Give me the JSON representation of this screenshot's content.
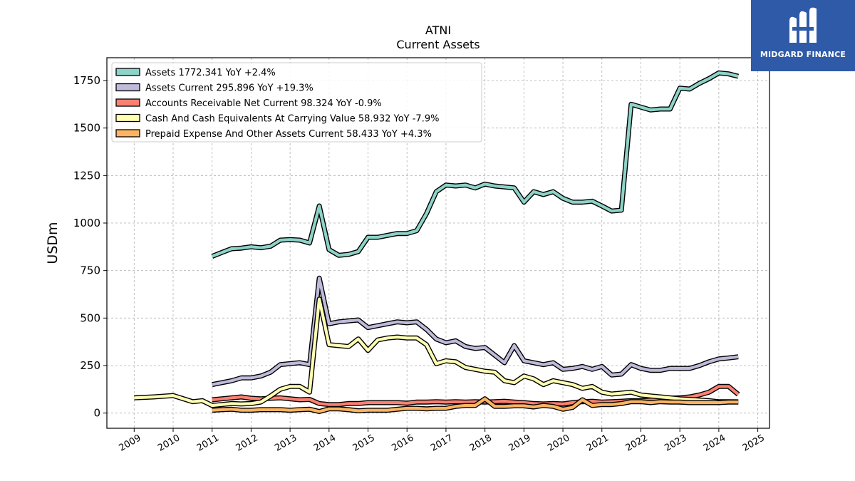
{
  "brand": {
    "name": "MIDGARD FINANCE",
    "color": "#2f5aa8"
  },
  "chart_data": {
    "type": "line",
    "title": "ATNI",
    "subtitle": "Current  Assets",
    "xlabel": "",
    "ylabel": "USDm",
    "xlim": [
      2008.3,
      2025.3
    ],
    "ylim": [
      -80,
      1870
    ],
    "yticks": [
      0,
      250,
      500,
      750,
      1000,
      1250,
      1500,
      1750
    ],
    "xticks": [
      "2009",
      "2010",
      "2011",
      "2012",
      "2013",
      "2014",
      "2015",
      "2016",
      "2017",
      "2018",
      "2019",
      "2020",
      "2021",
      "2022",
      "2023",
      "2024",
      "2025"
    ],
    "grid": true,
    "legend_position": "top-left",
    "series": [
      {
        "name": "Assets  1772.341 YoY +2.4%",
        "color": "#8dd3c7",
        "x": [
          2011.0,
          2011.25,
          2011.5,
          2011.75,
          2012.0,
          2012.25,
          2012.5,
          2012.75,
          2013.0,
          2013.25,
          2013.5,
          2013.75,
          2014.0,
          2014.25,
          2014.5,
          2014.75,
          2015.0,
          2015.25,
          2015.5,
          2015.75,
          2016.0,
          2016.25,
          2016.5,
          2016.75,
          2017.0,
          2017.25,
          2017.5,
          2017.75,
          2018.0,
          2018.25,
          2018.5,
          2018.75,
          2019.0,
          2019.25,
          2019.5,
          2019.75,
          2020.0,
          2020.25,
          2020.5,
          2020.75,
          2021.0,
          2021.25,
          2021.5,
          2021.75,
          2022.0,
          2022.25,
          2022.5,
          2022.75,
          2023.0,
          2023.25,
          2023.5,
          2023.75,
          2024.0,
          2024.25,
          2024.5
        ],
        "y": [
          825,
          845,
          865,
          868,
          875,
          870,
          878,
          910,
          913,
          910,
          895,
          1090,
          860,
          830,
          835,
          850,
          925,
          925,
          935,
          945,
          945,
          960,
          1050,
          1165,
          1200,
          1195,
          1200,
          1185,
          1205,
          1195,
          1190,
          1185,
          1110,
          1165,
          1150,
          1165,
          1130,
          1110,
          1110,
          1115,
          1090,
          1063,
          1068,
          1625,
          1610,
          1595,
          1600,
          1600,
          1710,
          1705,
          1735,
          1760,
          1790,
          1785,
          1772
        ]
      },
      {
        "name": "Assets Current  295.896 YoY +19.3%",
        "color": "#bebada",
        "x": [
          2011.0,
          2011.25,
          2011.5,
          2011.75,
          2012.0,
          2012.25,
          2012.5,
          2012.75,
          2013.0,
          2013.25,
          2013.5,
          2013.75,
          2014.0,
          2014.25,
          2014.5,
          2014.75,
          2015.0,
          2015.25,
          2015.5,
          2015.75,
          2016.0,
          2016.25,
          2016.5,
          2016.75,
          2017.0,
          2017.25,
          2017.5,
          2017.75,
          2018.0,
          2018.25,
          2018.5,
          2018.75,
          2019.0,
          2019.25,
          2019.5,
          2019.75,
          2020.0,
          2020.25,
          2020.5,
          2020.75,
          2021.0,
          2021.25,
          2021.5,
          2021.75,
          2022.0,
          2022.25,
          2022.5,
          2022.75,
          2023.0,
          2023.25,
          2023.5,
          2023.75,
          2024.0,
          2024.25,
          2024.5
        ],
        "y": [
          150,
          160,
          170,
          185,
          185,
          195,
          215,
          255,
          260,
          265,
          255,
          710,
          470,
          480,
          485,
          490,
          450,
          460,
          470,
          480,
          475,
          480,
          440,
          390,
          370,
          380,
          350,
          340,
          345,
          305,
          265,
          355,
          275,
          265,
          255,
          265,
          230,
          235,
          245,
          230,
          245,
          200,
          205,
          255,
          235,
          225,
          225,
          235,
          235,
          235,
          250,
          270,
          285,
          290,
          296
        ]
      },
      {
        "name": "Accounts Receivable Net Current  98.324 YoY -0.9%",
        "color": "#fb8072",
        "x": [
          2011.0,
          2011.25,
          2011.5,
          2011.75,
          2012.0,
          2012.25,
          2012.5,
          2012.75,
          2013.0,
          2013.25,
          2013.5,
          2013.75,
          2014.0,
          2014.25,
          2014.5,
          2014.75,
          2015.0,
          2015.25,
          2015.5,
          2015.75,
          2016.0,
          2016.25,
          2016.5,
          2016.75,
          2017.0,
          2017.25,
          2017.5,
          2017.75,
          2018.0,
          2018.25,
          2018.5,
          2018.75,
          2019.0,
          2019.25,
          2019.5,
          2019.75,
          2020.0,
          2020.25,
          2020.5,
          2020.75,
          2021.0,
          2021.25,
          2021.5,
          2021.75,
          2022.0,
          2022.25,
          2022.5,
          2022.75,
          2023.0,
          2023.25,
          2023.5,
          2023.75,
          2024.0,
          2024.25,
          2024.5
        ],
        "y": [
          70,
          75,
          80,
          85,
          78,
          75,
          78,
          80,
          75,
          70,
          72,
          50,
          45,
          45,
          50,
          50,
          55,
          55,
          55,
          55,
          52,
          58,
          58,
          60,
          58,
          60,
          58,
          60,
          58,
          60,
          62,
          58,
          55,
          50,
          48,
          50,
          48,
          55,
          60,
          62,
          58,
          60,
          62,
          65,
          65,
          68,
          70,
          78,
          80,
          85,
          95,
          110,
          140,
          140,
          98
        ]
      },
      {
        "name": "Cash And Cash Equivalents At Carrying Value  58.932 YoY -7.9%",
        "color": "#ffffb3",
        "x": [
          2009.0,
          2009.5,
          2010.0,
          2010.5,
          2010.75,
          2011.0,
          2011.25,
          2011.5,
          2011.75,
          2012.0,
          2012.25,
          2012.5,
          2012.75,
          2013.0,
          2013.25,
          2013.5,
          2013.75,
          2014.0,
          2014.25,
          2014.5,
          2014.75,
          2015.0,
          2015.25,
          2015.5,
          2015.75,
          2016.0,
          2016.25,
          2016.5,
          2016.75,
          2017.0,
          2017.25,
          2017.5,
          2017.75,
          2018.0,
          2018.25,
          2018.5,
          2018.75,
          2019.0,
          2019.25,
          2019.5,
          2019.75,
          2020.0,
          2020.25,
          2020.5,
          2020.75,
          2021.0,
          2021.25,
          2021.5,
          2021.75,
          2022.0,
          2022.25,
          2022.5,
          2022.75,
          2023.0,
          2023.25,
          2023.5,
          2023.75,
          2024.0,
          2024.25,
          2024.5
        ],
        "y": [
          80,
          85,
          92,
          60,
          65,
          40,
          45,
          50,
          48,
          50,
          58,
          90,
          125,
          140,
          140,
          110,
          600,
          360,
          355,
          350,
          390,
          330,
          385,
          395,
          400,
          395,
          395,
          360,
          260,
          275,
          270,
          240,
          230,
          220,
          215,
          170,
          160,
          195,
          180,
          150,
          170,
          160,
          150,
          130,
          140,
          110,
          100,
          105,
          110,
          95,
          90,
          85,
          80,
          75,
          72,
          68,
          65,
          60,
          60,
          59
        ]
      },
      {
        "name": "Prepaid Expense And Other Assets Current  58.433 YoY +4.3%",
        "color": "#fdb462",
        "x": [
          2011.0,
          2011.25,
          2011.5,
          2011.75,
          2012.0,
          2012.25,
          2012.5,
          2012.75,
          2013.0,
          2013.25,
          2013.5,
          2013.75,
          2014.0,
          2014.25,
          2014.5,
          2014.75,
          2015.0,
          2015.25,
          2015.5,
          2015.75,
          2016.0,
          2016.25,
          2016.5,
          2016.75,
          2017.0,
          2017.25,
          2017.5,
          2017.75,
          2018.0,
          2018.25,
          2018.5,
          2018.75,
          2019.0,
          2019.25,
          2019.5,
          2019.75,
          2020.0,
          2020.25,
          2020.5,
          2020.75,
          2021.0,
          2021.25,
          2021.5,
          2021.75,
          2022.0,
          2022.25,
          2022.5,
          2022.75,
          2023.0,
          2023.25,
          2023.5,
          2023.75,
          2024.0,
          2024.25,
          2024.5
        ],
        "y": [
          15,
          18,
          20,
          15,
          15,
          18,
          18,
          18,
          15,
          18,
          20,
          8,
          22,
          22,
          18,
          12,
          15,
          15,
          15,
          20,
          25,
          25,
          22,
          25,
          25,
          35,
          40,
          40,
          75,
          35,
          35,
          38,
          38,
          32,
          40,
          35,
          20,
          30,
          70,
          40,
          45,
          45,
          50,
          60,
          60,
          55,
          60,
          58,
          58,
          55,
          55,
          55,
          55,
          58,
          58
        ]
      }
    ]
  }
}
